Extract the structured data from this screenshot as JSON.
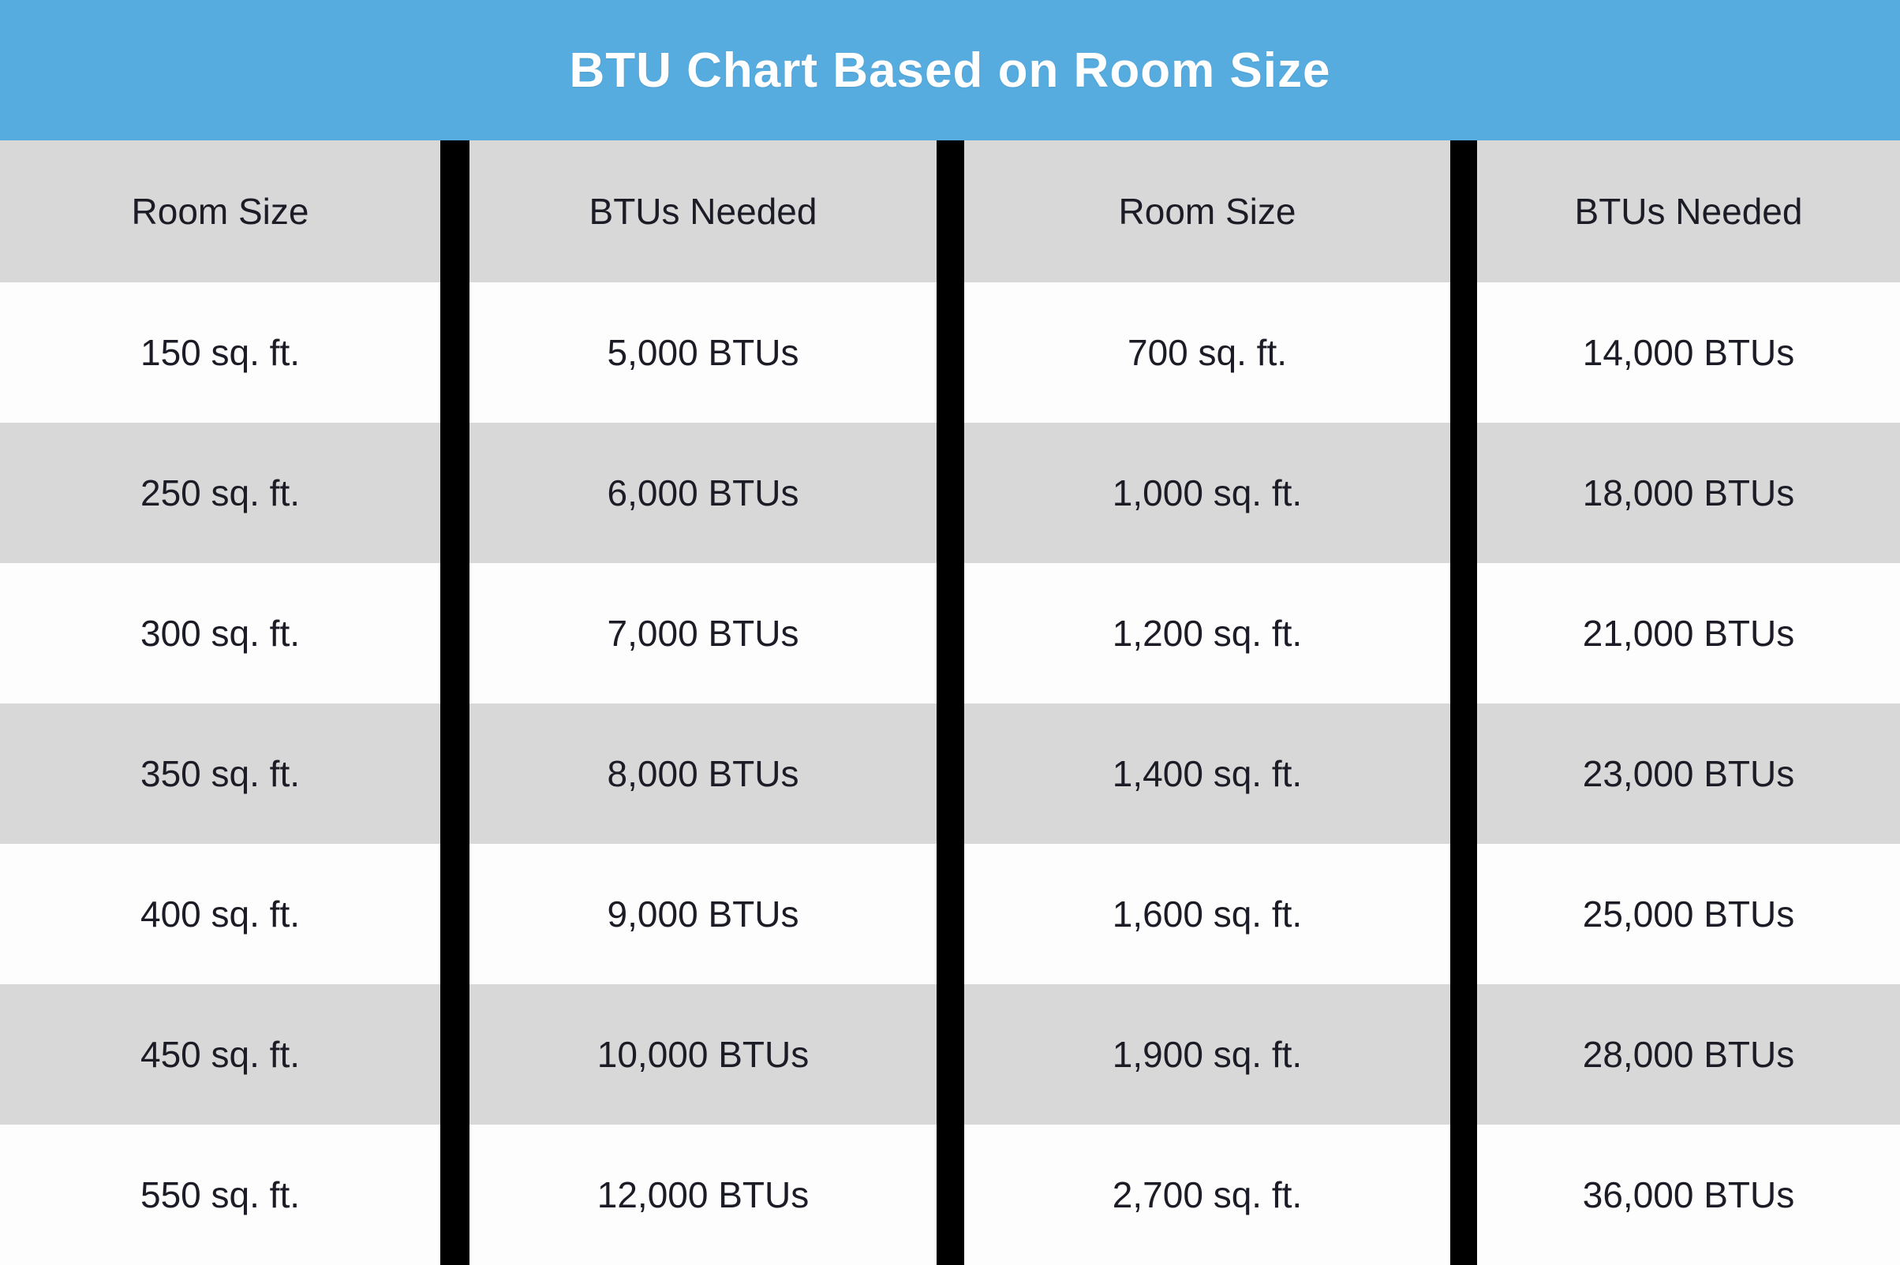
{
  "title": "BTU Chart Based on Room Size",
  "colors": {
    "title_bar_bg": "#57acdf",
    "title_text": "#ffffff",
    "header_cell_bg": "#d8d8d8",
    "row_stripe_bg": "#d8d8d8",
    "row_bg": "#fdfdfd",
    "divider": "#000000",
    "cell_text": "#1c1c26"
  },
  "chart_data": {
    "type": "table",
    "title": "BTU Chart Based on Room Size",
    "columns": [
      "Room Size",
      "BTUs Needed",
      "Room Size",
      "BTUs Needed"
    ],
    "rows": [
      [
        "150 sq. ft.",
        "5,000 BTUs",
        "700 sq. ft.",
        "14,000 BTUs"
      ],
      [
        "250 sq. ft.",
        "6,000 BTUs",
        "1,000 sq. ft.",
        "18,000 BTUs"
      ],
      [
        "300 sq. ft.",
        "7,000 BTUs",
        "1,200 sq. ft.",
        "21,000 BTUs"
      ],
      [
        "350 sq. ft.",
        "8,000 BTUs",
        "1,400 sq. ft.",
        "23,000 BTUs"
      ],
      [
        "400 sq. ft.",
        "9,000 BTUs",
        "1,600 sq. ft.",
        "25,000 BTUs"
      ],
      [
        "450 sq. ft.",
        "10,000 BTUs",
        "1,900 sq. ft.",
        "28,000 BTUs"
      ],
      [
        "550 sq. ft.",
        "12,000 BTUs",
        "2,700 sq. ft.",
        "36,000 BTUs"
      ]
    ],
    "room_size_sqft": [
      150,
      250,
      300,
      350,
      400,
      450,
      550,
      700,
      1000,
      1200,
      1400,
      1600,
      1900,
      2700
    ],
    "btus_needed": [
      5000,
      6000,
      7000,
      8000,
      9000,
      10000,
      12000,
      14000,
      18000,
      21000,
      23000,
      25000,
      28000,
      36000
    ]
  }
}
